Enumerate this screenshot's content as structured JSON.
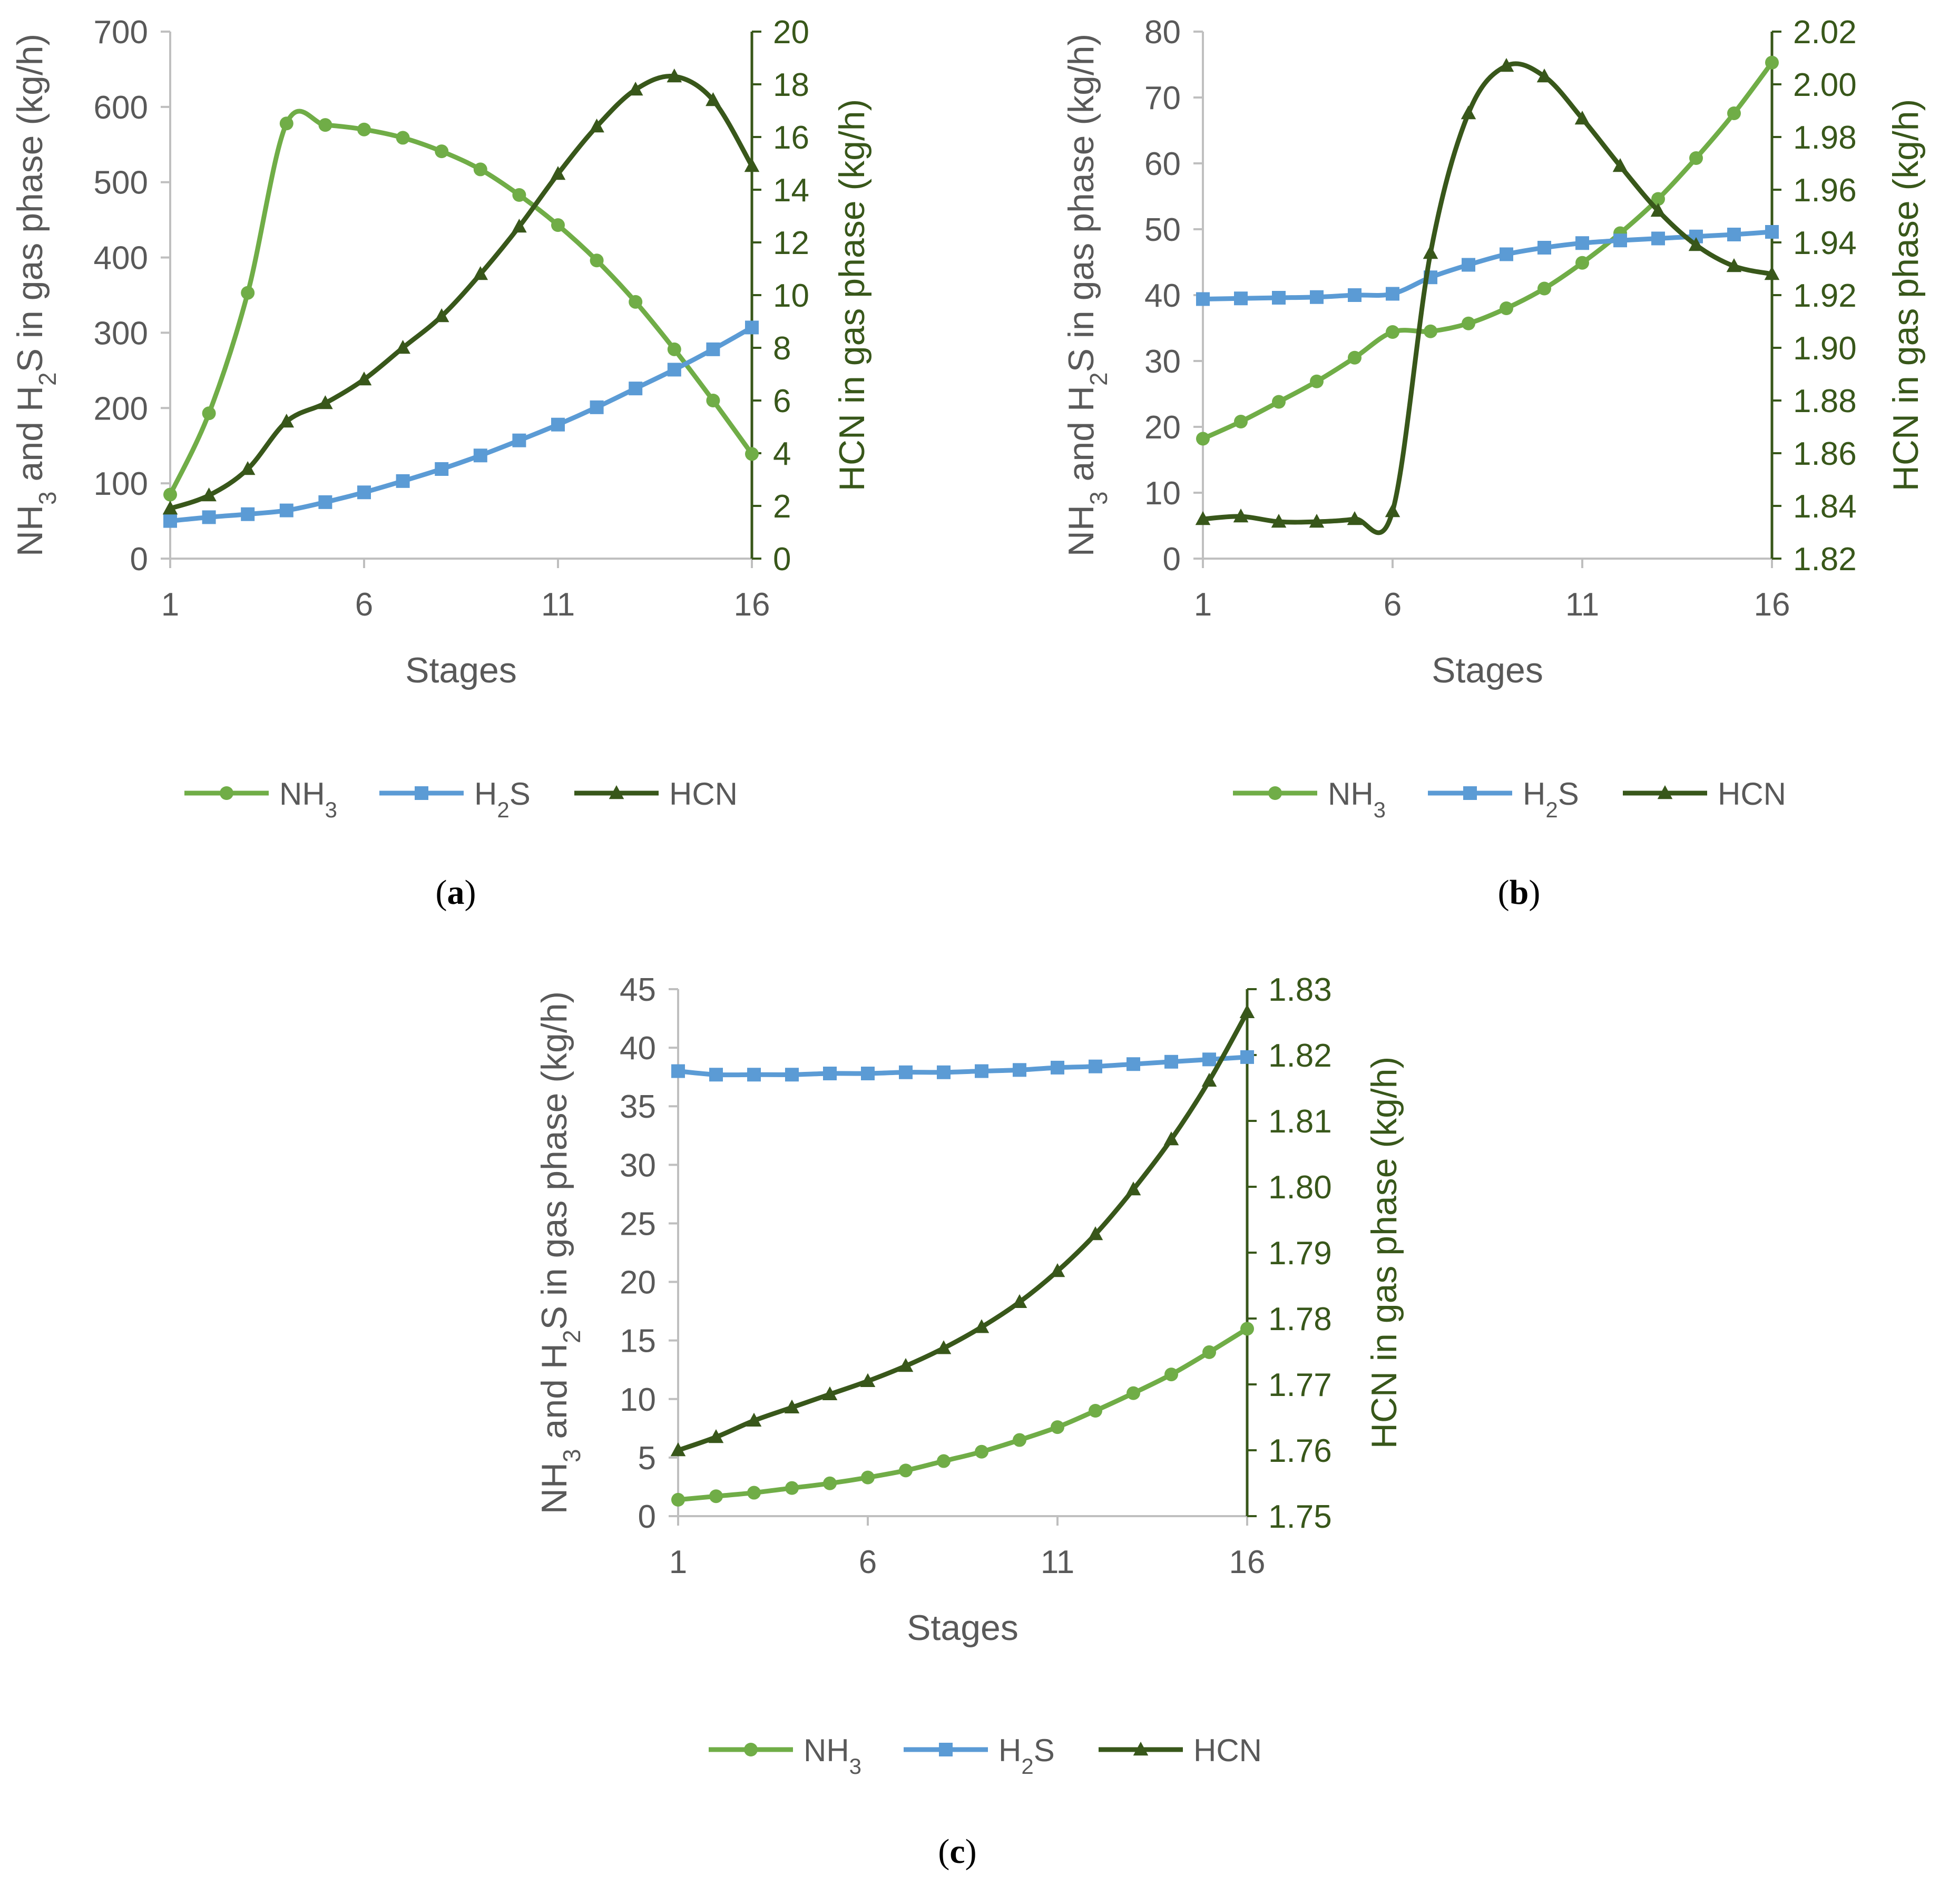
{
  "chart_data": [
    {
      "type": "line",
      "panel_label": "a",
      "xlabel": "Stages",
      "ylabel": "NH3 and H2S in gas phase (kg/h)",
      "y2label": "HCN in gas phase (kg/h)",
      "xlim": [
        1,
        16
      ],
      "xticks": [
        1,
        6,
        11,
        16
      ],
      "ylim": [
        0,
        700
      ],
      "yticks": [
        0,
        100,
        200,
        300,
        400,
        500,
        600,
        700
      ],
      "y2lim": [
        0,
        20
      ],
      "y2ticks": [
        0,
        2,
        4,
        6,
        8,
        10,
        12,
        14,
        16,
        18,
        20
      ],
      "legend_position": "bottom",
      "grid": false,
      "x": [
        1,
        2,
        3,
        4,
        5,
        6,
        7,
        8,
        9,
        10,
        11,
        12,
        13,
        14,
        15,
        16
      ],
      "series": [
        {
          "name": "NH3",
          "axis": "left",
          "color": "#70ad47",
          "marker": "circle",
          "values": [
            85,
            193,
            353,
            578,
            576,
            570,
            559,
            541,
            517,
            483,
            443,
            396,
            341,
            278,
            210,
            139
          ]
        },
        {
          "name": "H2S",
          "axis": "left",
          "color": "#5b9bd5",
          "marker": "square",
          "values": [
            50,
            55,
            59,
            64,
            75,
            88,
            103,
            119,
            137,
            157,
            178,
            201,
            226,
            251,
            278,
            307
          ]
        },
        {
          "name": "HCN",
          "axis": "right",
          "color": "#38571a",
          "marker": "triangle",
          "values": [
            1.9,
            2.4,
            3.4,
            5.2,
            5.9,
            6.8,
            8.0,
            9.2,
            10.8,
            12.6,
            14.6,
            16.4,
            17.8,
            18.3,
            17.4,
            14.9
          ]
        }
      ]
    },
    {
      "type": "line",
      "panel_label": "b",
      "xlabel": "Stages",
      "ylabel": "NH3 and H2S in gas phase (kg/h)",
      "y2label": "HCN in gas phase (kg/h)",
      "xlim": [
        1,
        16
      ],
      "xticks": [
        1,
        6,
        11,
        16
      ],
      "ylim": [
        0,
        80
      ],
      "yticks": [
        0,
        10,
        20,
        30,
        40,
        50,
        60,
        70,
        80
      ],
      "y2lim": [
        1.82,
        2.02
      ],
      "y2ticks": [
        1.82,
        1.84,
        1.86,
        1.88,
        1.9,
        1.92,
        1.94,
        1.96,
        1.98,
        2.0,
        2.02
      ],
      "y2tick_labels": [
        "1.82",
        "1.84",
        "1.86",
        "1.88",
        "1.90",
        "1.92",
        "1.94",
        "1.96",
        "1.98",
        "2.00",
        "2.02"
      ],
      "legend_position": "bottom",
      "grid": false,
      "x": [
        1,
        2,
        3,
        4,
        5,
        6,
        7,
        8,
        9,
        10,
        11,
        12,
        13,
        14,
        15,
        16
      ],
      "series": [
        {
          "name": "NH3",
          "axis": "left",
          "color": "#70ad47",
          "marker": "circle",
          "values": [
            18.2,
            20.8,
            23.8,
            26.9,
            30.5,
            34.4,
            34.5,
            35.7,
            38.0,
            41.0,
            44.9,
            49.4,
            54.6,
            60.8,
            67.6,
            75.3
          ]
        },
        {
          "name": "H2S",
          "axis": "left",
          "color": "#5b9bd5",
          "marker": "square",
          "values": [
            39.4,
            39.5,
            39.6,
            39.7,
            40.0,
            40.2,
            42.7,
            44.6,
            46.2,
            47.2,
            47.9,
            48.3,
            48.6,
            48.9,
            49.2,
            49.6
          ]
        },
        {
          "name": "HCN",
          "axis": "right",
          "color": "#38571a",
          "marker": "triangle",
          "values": [
            1.835,
            1.836,
            1.834,
            1.834,
            1.835,
            1.838,
            1.936,
            1.989,
            2.007,
            2.003,
            1.987,
            1.969,
            1.952,
            1.939,
            1.931,
            1.928
          ]
        }
      ]
    },
    {
      "type": "line",
      "panel_label": "c",
      "xlabel": "Stages",
      "ylabel": "NH3 and H2S in gas phase (kg/h)",
      "y2label": "HCN in gas phase (kg/h)",
      "xlim": [
        1,
        16
      ],
      "xticks": [
        1,
        6,
        11,
        16
      ],
      "ylim": [
        0,
        45
      ],
      "yticks": [
        0,
        5,
        10,
        15,
        20,
        25,
        30,
        35,
        40,
        45
      ],
      "y2lim": [
        1.75,
        1.83
      ],
      "y2ticks": [
        1.75,
        1.76,
        1.77,
        1.78,
        1.79,
        1.8,
        1.81,
        1.82,
        1.83
      ],
      "y2tick_labels": [
        "1.75",
        "1.76",
        "1.77",
        "1.78",
        "1.79",
        "1.80",
        "1.81",
        "1.82",
        "1.83"
      ],
      "legend_position": "bottom",
      "grid": false,
      "x": [
        1,
        2,
        3,
        4,
        5,
        6,
        7,
        8,
        9,
        10,
        11,
        12,
        13,
        14,
        15,
        16
      ],
      "series": [
        {
          "name": "NH3",
          "axis": "left",
          "color": "#70ad47",
          "marker": "circle",
          "values": [
            1.4,
            1.7,
            2.0,
            2.4,
            2.8,
            3.3,
            3.9,
            4.7,
            5.5,
            6.5,
            7.6,
            9.0,
            10.5,
            12.1,
            14.0,
            16.0
          ]
        },
        {
          "name": "H2S",
          "axis": "left",
          "color": "#5b9bd5",
          "marker": "square",
          "values": [
            38.0,
            37.7,
            37.7,
            37.7,
            37.8,
            37.8,
            37.9,
            37.9,
            38.0,
            38.1,
            38.3,
            38.4,
            38.6,
            38.8,
            39.0,
            39.2
          ]
        },
        {
          "name": "HCN",
          "axis": "right",
          "color": "#38571a",
          "marker": "triangle",
          "values": [
            1.76,
            1.762,
            1.7645,
            1.7665,
            1.7685,
            1.7705,
            1.7728,
            1.7755,
            1.7787,
            1.7825,
            1.7872,
            1.7928,
            1.7996,
            1.8072,
            1.8161,
            1.8265
          ]
        }
      ]
    }
  ]
}
